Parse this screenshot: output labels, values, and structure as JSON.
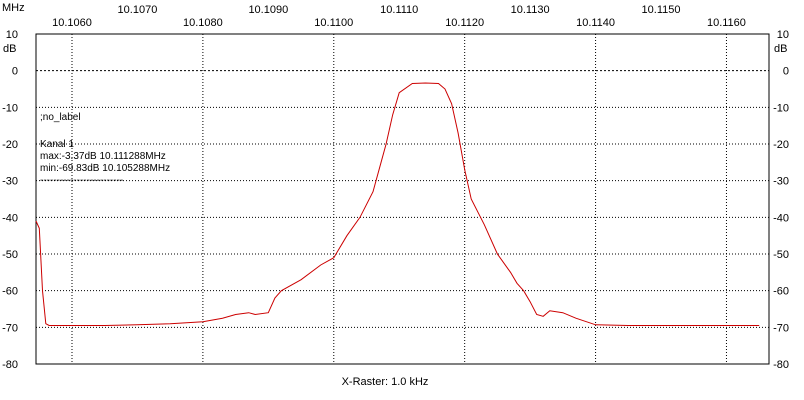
{
  "chart_data": {
    "type": "line",
    "x_unit": "MHz",
    "y_unit": "dB",
    "xlabel": "X-Raster: 1.0 kHz",
    "xlim": [
      10.10545,
      10.11665
    ],
    "ylim": [
      -80,
      10
    ],
    "x_ticks_upper": [
      10.107,
      10.109,
      10.111,
      10.113,
      10.115
    ],
    "x_ticks_lower": [
      10.106,
      10.108,
      10.11,
      10.112,
      10.114,
      10.116
    ],
    "x_ticks_upper_labels": [
      "10.1070",
      "10.1090",
      "10.1110",
      "10.1130",
      "10.1150"
    ],
    "x_ticks_lower_labels": [
      "10.1060",
      "10.1080",
      "10.1100",
      "10.1120",
      "10.1140",
      "10.1160"
    ],
    "y_ticks": [
      10,
      0,
      -10,
      -20,
      -30,
      -40,
      -50,
      -60,
      -70,
      -80
    ],
    "y_tick_labels": [
      "10",
      "0",
      "-10",
      "-20",
      "-30",
      "-40",
      "-50",
      "-60",
      "-70",
      "-80"
    ],
    "grid": true,
    "line_color": "#cc0000",
    "info_lines": [
      ";no_label",
      "Kanal 1",
      "max:-3.37dB 10.111288MHz",
      "min:-69.83dB 10.105288MHz",
      "-------------------------"
    ],
    "series": [
      {
        "name": "Kanal 1",
        "x": [
          10.10545,
          10.1055,
          10.10555,
          10.1056,
          10.10565,
          10.1057,
          10.106,
          10.1065,
          10.107,
          10.1075,
          10.108,
          10.1083,
          10.1085,
          10.1087,
          10.1088,
          10.109,
          10.1091,
          10.1092,
          10.1095,
          10.1098,
          10.11,
          10.1102,
          10.1104,
          10.1106,
          10.1108,
          10.1109,
          10.111,
          10.1112,
          10.1114,
          10.1116,
          10.1117,
          10.1118,
          10.1119,
          10.112,
          10.1121,
          10.1123,
          10.1125,
          10.1127,
          10.1128,
          10.1129,
          10.113,
          10.1131,
          10.1132,
          10.1133,
          10.1135,
          10.1137,
          10.114,
          10.1145,
          10.115,
          10.1155,
          10.116,
          10.1165
        ],
        "y": [
          -41,
          -43,
          -60,
          -69,
          -69.5,
          -69.5,
          -69.5,
          -69.5,
          -69.3,
          -69,
          -68.5,
          -67.5,
          -66.5,
          -66,
          -66.5,
          -66,
          -62,
          -60,
          -57,
          -53,
          -51,
          -45,
          -40,
          -33,
          -20,
          -12,
          -6,
          -3.5,
          -3.37,
          -3.5,
          -5,
          -9,
          -17,
          -27,
          -35,
          -42,
          -50,
          -55,
          -58,
          -60,
          -63,
          -66.5,
          -67,
          -65.5,
          -66,
          -67.5,
          -69.3,
          -69.5,
          -69.5,
          -69.5,
          -69.5,
          -69.5
        ]
      }
    ]
  }
}
